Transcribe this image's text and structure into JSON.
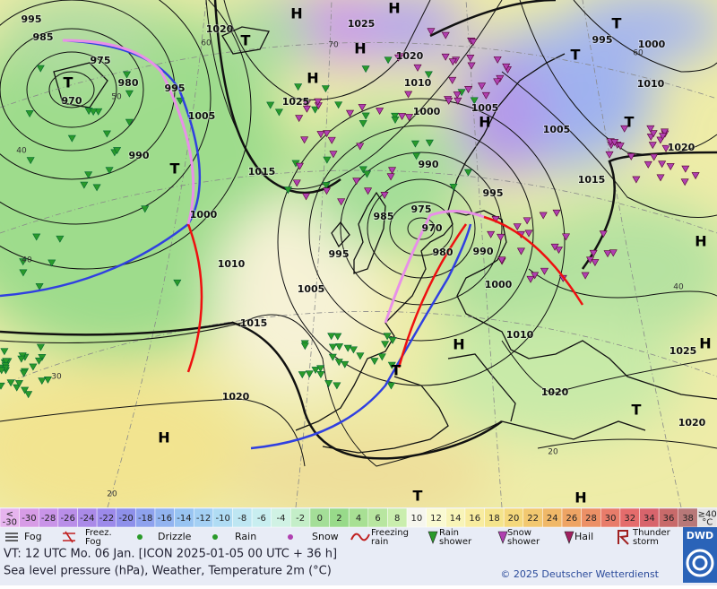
{
  "map": {
    "pressure_labels": [
      "995",
      "985",
      "975",
      "980",
      "970",
      "995",
      "1005",
      "990",
      "1000",
      "1010",
      "1015",
      "1020",
      "1015",
      "1025",
      "1020",
      "1025",
      "1020",
      "1010",
      "1000",
      "1005",
      "990",
      "985",
      "975",
      "970",
      "980",
      "995",
      "1005",
      "995",
      "990",
      "1000",
      "1010",
      "1020",
      "1005",
      "1015",
      "1020",
      "1010",
      "1000",
      "995",
      "1025",
      "1020"
    ],
    "centers": [
      "H",
      "H",
      "T",
      "H",
      "H",
      "T",
      "T",
      "H",
      "T",
      "T",
      "T",
      "H",
      "H",
      "T",
      "H",
      "T",
      "H",
      "T",
      "H"
    ],
    "temperature_labels": [
      "60",
      "50",
      "40",
      "40",
      "30",
      "20",
      "70",
      "60",
      "40",
      "20"
    ]
  },
  "legend": {
    "scale": [
      {
        "label": "<\n-30",
        "color": "#e6b4ee"
      },
      {
        "label": "-30",
        "color": "#d79ce6"
      },
      {
        "label": "-28",
        "color": "#c994e8"
      },
      {
        "label": "-26",
        "color": "#b98ee8"
      },
      {
        "label": "-24",
        "color": "#aa8ae8"
      },
      {
        "label": "-22",
        "color": "#9c8aea"
      },
      {
        "label": "-20",
        "color": "#8e90ea"
      },
      {
        "label": "-18",
        "color": "#8ea2ee"
      },
      {
        "label": "-16",
        "color": "#92b4f0"
      },
      {
        "label": "-14",
        "color": "#98c4f2"
      },
      {
        "label": "-12",
        "color": "#a4d0f4"
      },
      {
        "label": "-10",
        "color": "#b0dcf4"
      },
      {
        "label": "-8",
        "color": "#bee6f2"
      },
      {
        "label": "-6",
        "color": "#c8eef0"
      },
      {
        "label": "-4",
        "color": "#d0f2e4"
      },
      {
        "label": "-2",
        "color": "#c4eec8"
      },
      {
        "label": "0",
        "color": "#a4de98"
      },
      {
        "label": "2",
        "color": "#98da8a"
      },
      {
        "label": "4",
        "color": "#a8e094"
      },
      {
        "label": "6",
        "color": "#b8e6a0"
      },
      {
        "label": "8",
        "color": "#caeeae"
      },
      {
        "label": "10",
        "color": "#f6f6ee"
      },
      {
        "label": "12",
        "color": "#fafad2"
      },
      {
        "label": "14",
        "color": "#f8f4b8"
      },
      {
        "label": "16",
        "color": "#f8eca0"
      },
      {
        "label": "18",
        "color": "#f4e48c"
      },
      {
        "label": "20",
        "color": "#f4d87c"
      },
      {
        "label": "22",
        "color": "#f2c870"
      },
      {
        "label": "24",
        "color": "#f0b868"
      },
      {
        "label": "26",
        "color": "#eea464"
      },
      {
        "label": "28",
        "color": "#ec9066"
      },
      {
        "label": "30",
        "color": "#e87c6a"
      },
      {
        "label": "32",
        "color": "#e46c6c"
      },
      {
        "label": "34",
        "color": "#d8646c"
      },
      {
        "label": "36",
        "color": "#c86a6a"
      },
      {
        "label": "38",
        "color": "#b87878"
      },
      {
        "label": "≥40\n°C",
        "color": "#e4e4e4"
      }
    ],
    "symbols": [
      "Fog",
      "Freez.\nFog",
      "Drizzle",
      "Rain",
      "Snow",
      "Freezing\nrain",
      "Rain\nshower",
      "Snow\nshower",
      "Hail",
      "Thunder\nstorm"
    ]
  },
  "footer": {
    "valid_time": "VT: 12 UTC Mo.  06 Jan. [ICON 2025-01-05  00 UTC + 36 h]",
    "description": "Sea level pressure (hPa), Weather, Temperature 2m (°C)",
    "copyright": "© 2025 Deutscher Wetterdienst",
    "logo": "DWD"
  }
}
